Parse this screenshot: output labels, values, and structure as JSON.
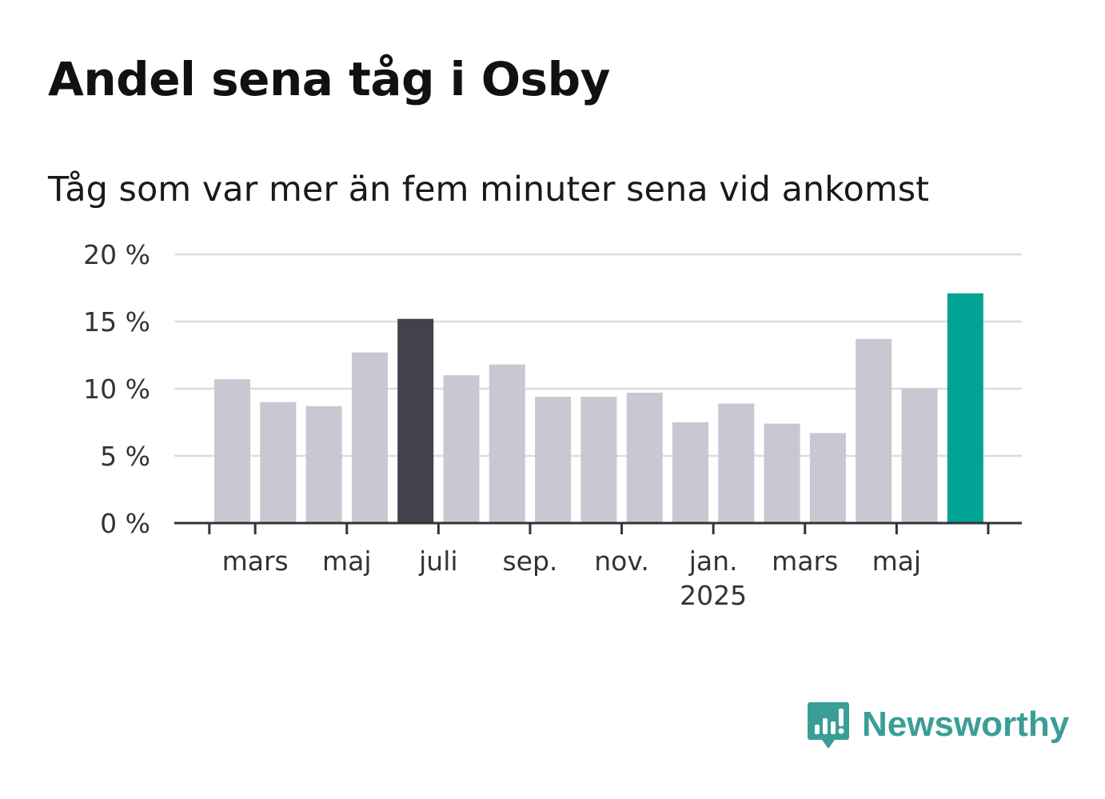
{
  "header": {
    "title": "Andel sena tåg i Osby",
    "subtitle": "Tåg som var mer än fem minuter sena vid ankomst"
  },
  "brand": {
    "name": "Newsworthy",
    "icon": "newsworthy-logo-icon",
    "color": "#3a9e96"
  },
  "chart_data": {
    "type": "bar",
    "title": "Andel sena tåg i Osby",
    "subtitle": "Tåg som var mer än fem minuter sena vid ankomst",
    "xlabel": "",
    "ylabel": "",
    "ylim": [
      0,
      20
    ],
    "yticks": [
      0,
      5,
      10,
      15,
      20
    ],
    "ytick_labels": [
      "0 %",
      "5 %",
      "10 %",
      "15 %",
      "20 %"
    ],
    "grid": true,
    "legend": "none",
    "categories": [
      "2024-02",
      "2024-03",
      "2024-04",
      "2024-05",
      "2024-06",
      "2024-07",
      "2024-08",
      "2024-09",
      "2024-10",
      "2024-11",
      "2024-12",
      "2025-01",
      "2025-02",
      "2025-03",
      "2025-04",
      "2025-05",
      "2025-06"
    ],
    "values": [
      10.7,
      9.0,
      8.7,
      12.7,
      15.2,
      11.0,
      11.8,
      9.4,
      9.4,
      9.7,
      7.5,
      8.9,
      7.4,
      6.7,
      13.7,
      10.0,
      17.1
    ],
    "highlight": {
      "2024-06": "#44414e",
      "2025-06": "#00a396"
    },
    "bar_color": "#c8c7d2",
    "xtick_labels": [
      {
        "category": "2024-03",
        "label": "mars"
      },
      {
        "category": "2024-05",
        "label": "maj"
      },
      {
        "category": "2024-07",
        "label": "juli"
      },
      {
        "category": "2024-09",
        "label": "sep."
      },
      {
        "category": "2024-11",
        "label": "nov."
      },
      {
        "category": "2025-01",
        "label": "jan.",
        "sublabel": "2025"
      },
      {
        "category": "2025-03",
        "label": "mars"
      },
      {
        "category": "2025-05",
        "label": "maj"
      }
    ]
  }
}
